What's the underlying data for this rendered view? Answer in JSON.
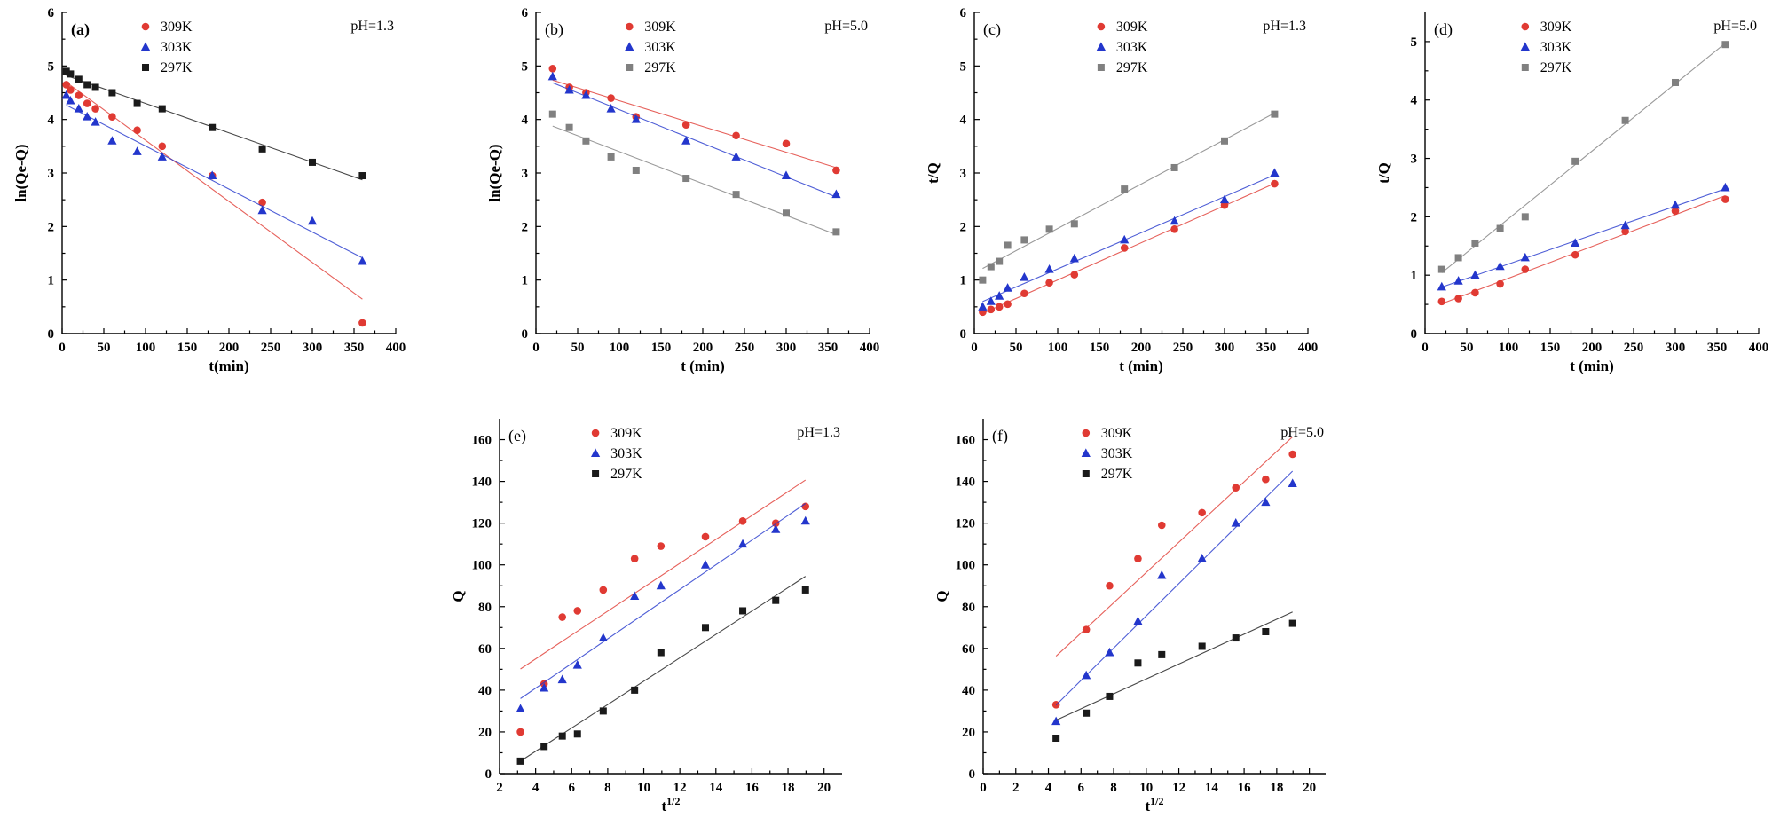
{
  "figure": {
    "background": "#ffffff"
  },
  "palette": {
    "series_red": "#e03a33",
    "series_blue": "#2336cc",
    "series_black": "#1a1a1a",
    "series_gray": "#808080",
    "axis": "#000000"
  },
  "chart_data": [
    {
      "id": "a",
      "type": "scatter",
      "panel_label": "(a)",
      "panel_bold": true,
      "annotation": "pH=1.3",
      "xlabel": "t(min)",
      "ylabel": "ln(Qe-Q)",
      "xlim": [
        0,
        400
      ],
      "xticks": [
        0,
        50,
        100,
        150,
        200,
        250,
        300,
        350,
        400
      ],
      "ylim": [
        0,
        6
      ],
      "yticks": [
        0,
        1,
        2,
        3,
        4,
        5,
        6
      ],
      "legend_x": 0.25,
      "legend_position": "top-center",
      "grid": false,
      "series": [
        {
          "name": "309K",
          "marker": "circle",
          "color": "#e03a33",
          "x": [
            5,
            10,
            20,
            30,
            40,
            60,
            90,
            120,
            180,
            240,
            360
          ],
          "y": [
            4.65,
            4.55,
            4.45,
            4.3,
            4.2,
            4.05,
            3.8,
            3.5,
            2.95,
            2.45,
            0.2
          ]
        },
        {
          "name": "303K",
          "marker": "triangle",
          "color": "#2336cc",
          "x": [
            5,
            10,
            20,
            30,
            40,
            60,
            90,
            120,
            180,
            240,
            300,
            360
          ],
          "y": [
            4.45,
            4.35,
            4.2,
            4.05,
            3.95,
            3.6,
            3.4,
            3.3,
            2.95,
            2.3,
            2.1,
            1.35
          ]
        },
        {
          "name": "297K",
          "marker": "square",
          "color": "#1a1a1a",
          "x": [
            5,
            10,
            20,
            30,
            40,
            60,
            90,
            120,
            180,
            240,
            300,
            360
          ],
          "y": [
            4.9,
            4.85,
            4.75,
            4.65,
            4.6,
            4.5,
            4.3,
            4.2,
            3.85,
            3.45,
            3.2,
            2.95
          ]
        }
      ]
    },
    {
      "id": "b",
      "type": "scatter",
      "panel_label": "(b)",
      "panel_bold": false,
      "annotation": "pH=5.0",
      "xlabel": "t (min)",
      "ylabel": "ln(Qe-Q)",
      "xlim": [
        0,
        400
      ],
      "xticks": [
        0,
        50,
        100,
        150,
        200,
        250,
        300,
        350,
        400
      ],
      "ylim": [
        0,
        6
      ],
      "yticks": [
        0,
        1,
        2,
        3,
        4,
        5,
        6
      ],
      "legend_x": 0.28,
      "legend_position": "top-center",
      "grid": false,
      "series": [
        {
          "name": "309K",
          "marker": "circle",
          "color": "#e03a33",
          "x": [
            20,
            40,
            60,
            90,
            120,
            180,
            240,
            300,
            360
          ],
          "y": [
            4.95,
            4.6,
            4.5,
            4.4,
            4.05,
            3.9,
            3.7,
            3.55,
            3.05
          ]
        },
        {
          "name": "303K",
          "marker": "triangle",
          "color": "#2336cc",
          "x": [
            20,
            40,
            60,
            90,
            120,
            180,
            240,
            300,
            360
          ],
          "y": [
            4.8,
            4.55,
            4.45,
            4.2,
            4.0,
            3.6,
            3.3,
            2.95,
            2.6
          ]
        },
        {
          "name": "297K",
          "marker": "square",
          "color": "#808080",
          "x": [
            20,
            40,
            60,
            90,
            120,
            180,
            240,
            300,
            360
          ],
          "y": [
            4.1,
            3.85,
            3.6,
            3.3,
            3.05,
            2.9,
            2.6,
            2.25,
            1.9
          ]
        }
      ]
    },
    {
      "id": "c",
      "type": "scatter",
      "panel_label": "(c)",
      "panel_bold": false,
      "annotation": "pH=1.3",
      "xlabel": "t (min)",
      "ylabel": "t/Q",
      "xlim": [
        0,
        400
      ],
      "xticks": [
        0,
        50,
        100,
        150,
        200,
        250,
        300,
        350,
        400
      ],
      "ylim": [
        0,
        6
      ],
      "yticks": [
        0,
        1,
        2,
        3,
        4,
        5,
        6
      ],
      "legend_x": 0.38,
      "legend_position": "top-center",
      "grid": false,
      "series": [
        {
          "name": "309K",
          "marker": "circle",
          "color": "#e03a33",
          "x": [
            10,
            20,
            30,
            40,
            60,
            90,
            120,
            180,
            240,
            300,
            360
          ],
          "y": [
            0.4,
            0.45,
            0.5,
            0.55,
            0.75,
            0.95,
            1.1,
            1.6,
            1.95,
            2.4,
            2.8
          ]
        },
        {
          "name": "303K",
          "marker": "triangle",
          "color": "#2336cc",
          "x": [
            10,
            20,
            30,
            40,
            60,
            90,
            120,
            180,
            240,
            300,
            360
          ],
          "y": [
            0.5,
            0.6,
            0.7,
            0.85,
            1.05,
            1.2,
            1.4,
            1.75,
            2.1,
            2.5,
            3.0
          ]
        },
        {
          "name": "297K",
          "marker": "square",
          "color": "#808080",
          "x": [
            10,
            20,
            30,
            40,
            60,
            90,
            120,
            180,
            240,
            300,
            360
          ],
          "y": [
            1.0,
            1.25,
            1.35,
            1.65,
            1.75,
            1.95,
            2.05,
            2.7,
            3.1,
            3.6,
            4.1
          ]
        }
      ]
    },
    {
      "id": "d",
      "type": "scatter",
      "panel_label": "(d)",
      "panel_bold": false,
      "annotation": "pH=5.0",
      "xlabel": "t (min)",
      "ylabel": "t/Q",
      "xlim": [
        0,
        400
      ],
      "xticks": [
        0,
        50,
        100,
        150,
        200,
        250,
        300,
        350,
        400
      ],
      "ylim": [
        0,
        5.5
      ],
      "yticks": [
        0,
        1,
        2,
        3,
        4,
        5
      ],
      "legend_x": 0.3,
      "legend_position": "top-center",
      "grid": false,
      "series": [
        {
          "name": "309K",
          "marker": "circle",
          "color": "#e03a33",
          "x": [
            20,
            40,
            60,
            90,
            120,
            180,
            240,
            300,
            360
          ],
          "y": [
            0.55,
            0.6,
            0.7,
            0.85,
            1.1,
            1.35,
            1.75,
            2.1,
            2.3
          ]
        },
        {
          "name": "303K",
          "marker": "triangle",
          "color": "#2336cc",
          "x": [
            20,
            40,
            60,
            90,
            120,
            180,
            240,
            300,
            360
          ],
          "y": [
            0.8,
            0.9,
            1.0,
            1.15,
            1.3,
            1.55,
            1.85,
            2.2,
            2.5
          ]
        },
        {
          "name": "297K",
          "marker": "square",
          "color": "#808080",
          "x": [
            20,
            40,
            60,
            90,
            120,
            180,
            240,
            300,
            360
          ],
          "y": [
            1.1,
            1.3,
            1.55,
            1.8,
            2.0,
            2.95,
            3.65,
            4.3,
            4.95
          ]
        }
      ]
    },
    {
      "id": "e",
      "type": "scatter",
      "panel_label": "(e)",
      "panel_bold": false,
      "annotation": "pH=1.3",
      "xlabel": "t^1/2",
      "ylabel": "Q",
      "xlim": [
        2,
        21
      ],
      "xticks": [
        2,
        4,
        6,
        8,
        10,
        12,
        14,
        16,
        18,
        20
      ],
      "ylim": [
        0,
        170
      ],
      "yticks": [
        0,
        20,
        40,
        60,
        80,
        100,
        120,
        140,
        160
      ],
      "legend_x": 0.28,
      "legend_position": "top-center",
      "grid": false,
      "series": [
        {
          "name": "309K",
          "marker": "circle",
          "color": "#e03a33",
          "x": [
            3.16,
            4.47,
            5.48,
            6.32,
            7.75,
            9.49,
            10.95,
            13.42,
            15.49,
            17.32,
            18.97
          ],
          "y": [
            20,
            43,
            75,
            78,
            88,
            103,
            109,
            113.5,
            121,
            120,
            128
          ]
        },
        {
          "name": "303K",
          "marker": "triangle",
          "color": "#2336cc",
          "x": [
            3.16,
            4.47,
            5.48,
            6.32,
            7.75,
            9.49,
            10.95,
            13.42,
            15.49,
            17.32,
            18.97
          ],
          "y": [
            31,
            41,
            45,
            52,
            65,
            85,
            90,
            100,
            110,
            117,
            121
          ]
        },
        {
          "name": "297K",
          "marker": "square",
          "color": "#1a1a1a",
          "x": [
            3.16,
            4.47,
            5.48,
            6.32,
            7.75,
            9.49,
            10.95,
            13.42,
            15.49,
            17.32,
            18.97
          ],
          "y": [
            6,
            13,
            18,
            19,
            30,
            40,
            58,
            70,
            78,
            83,
            88
          ]
        }
      ]
    },
    {
      "id": "f",
      "type": "scatter",
      "panel_label": "(f)",
      "panel_bold": false,
      "annotation": "pH=5.0",
      "xlabel": "t^1/2",
      "ylabel": "Q",
      "xlim": [
        0,
        21
      ],
      "xticks": [
        0,
        2,
        4,
        6,
        8,
        10,
        12,
        14,
        16,
        18,
        20
      ],
      "ylim": [
        0,
        170
      ],
      "yticks": [
        0,
        20,
        40,
        60,
        80,
        100,
        120,
        140,
        160
      ],
      "legend_x": 0.3,
      "legend_position": "top-center",
      "grid": false,
      "series": [
        {
          "name": "309K",
          "marker": "circle",
          "color": "#e03a33",
          "x": [
            4.47,
            6.32,
            7.75,
            9.49,
            10.95,
            13.42,
            15.49,
            17.32,
            18.97
          ],
          "y": [
            33,
            69,
            90,
            103,
            119,
            125,
            137,
            141,
            153
          ]
        },
        {
          "name": "303K",
          "marker": "triangle",
          "color": "#2336cc",
          "x": [
            4.47,
            6.32,
            7.75,
            9.49,
            10.95,
            13.42,
            15.49,
            17.32,
            18.97
          ],
          "y": [
            25,
            47,
            58,
            73,
            95,
            103,
            120,
            130,
            139
          ]
        },
        {
          "name": "297K",
          "marker": "square",
          "color": "#1a1a1a",
          "x": [
            4.47,
            6.32,
            7.75,
            9.49,
            10.95,
            13.42,
            15.49,
            17.32,
            18.97
          ],
          "y": [
            17,
            29,
            37,
            53,
            57,
            61,
            65,
            68,
            72
          ]
        }
      ]
    }
  ]
}
